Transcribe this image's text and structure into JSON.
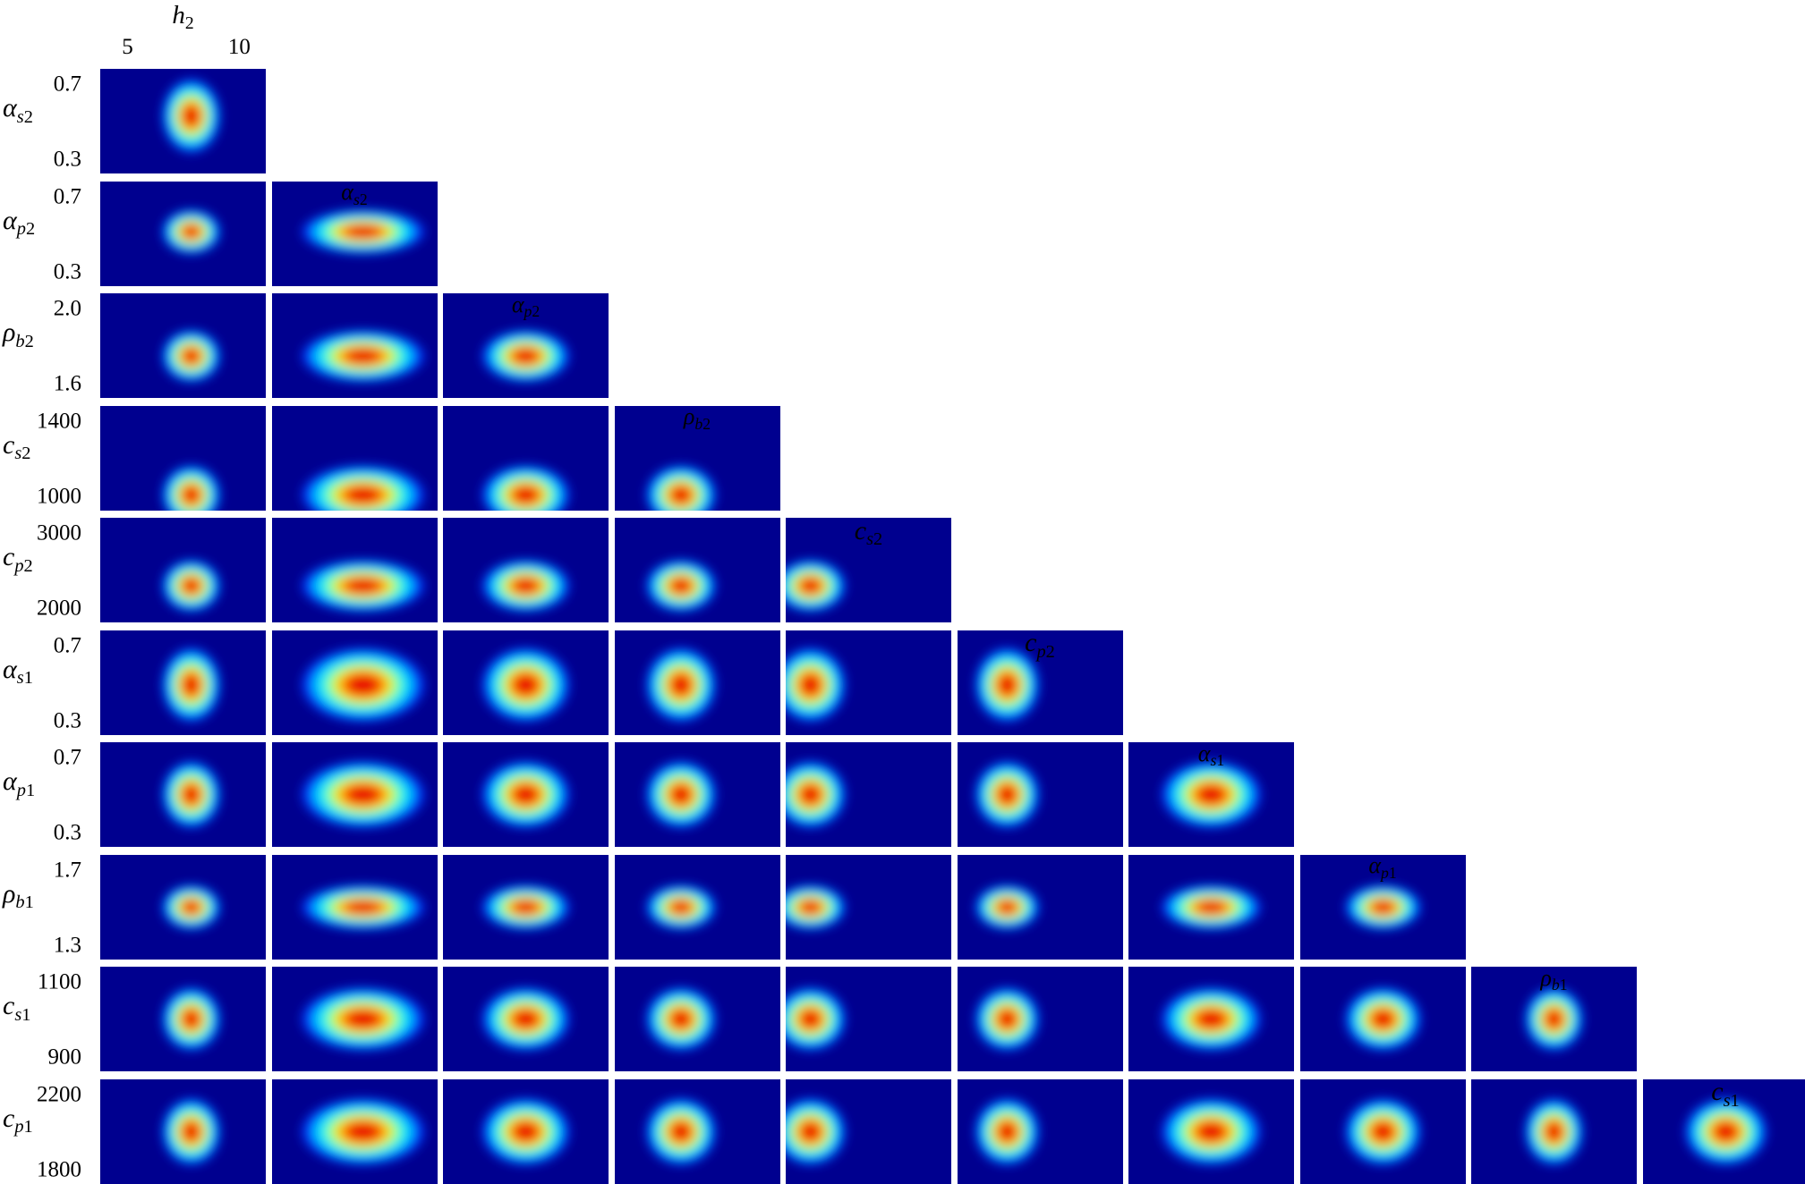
{
  "chart_data": {
    "type": "heatmap",
    "title": "",
    "layout": "lower-triangular pairwise 2D density matrix",
    "colormap": "jet",
    "colors": {
      "low": "#00008F",
      "mid": "#00FFFF",
      "peak": "#FF0000"
    },
    "grid": false,
    "top_label": {
      "base": "h",
      "sub": "2"
    },
    "top_ticks": [
      "5",
      "10"
    ],
    "variables": [
      {
        "id": "h2",
        "base": "h",
        "greek": false,
        "sub_letter": "",
        "sub_num": "2"
      },
      {
        "id": "as2",
        "base": "α",
        "greek": true,
        "sub_letter": "s",
        "sub_num": "2"
      },
      {
        "id": "ap2",
        "base": "α",
        "greek": true,
        "sub_letter": "p",
        "sub_num": "2"
      },
      {
        "id": "rb2",
        "base": "ρ",
        "greek": true,
        "sub_letter": "b",
        "sub_num": "2"
      },
      {
        "id": "cs2",
        "base": "c",
        "greek": false,
        "sub_letter": "s",
        "sub_num": "2"
      },
      {
        "id": "cp2",
        "base": "c",
        "greek": false,
        "sub_letter": "p",
        "sub_num": "2"
      },
      {
        "id": "as1",
        "base": "α",
        "greek": true,
        "sub_letter": "s",
        "sub_num": "1"
      },
      {
        "id": "ap1",
        "base": "α",
        "greek": true,
        "sub_letter": "p",
        "sub_num": "1"
      },
      {
        "id": "rb1",
        "base": "ρ",
        "greek": true,
        "sub_letter": "b",
        "sub_num": "1"
      },
      {
        "id": "cs1",
        "base": "c",
        "greek": false,
        "sub_letter": "s",
        "sub_num": "1"
      },
      {
        "id": "cp1",
        "base": "c",
        "greek": false,
        "sub_letter": "p",
        "sub_num": "1"
      }
    ],
    "rows": [
      {
        "var": "as2",
        "tick_top": "0.7",
        "tick_bottom": "0.3"
      },
      {
        "var": "ap2",
        "tick_top": "0.7",
        "tick_bottom": "0.3"
      },
      {
        "var": "rb2",
        "tick_top": "2.0",
        "tick_bottom": "1.6"
      },
      {
        "var": "cs2",
        "tick_top": "1400",
        "tick_bottom": "1000"
      },
      {
        "var": "cp2",
        "tick_top": "3000",
        "tick_bottom": "2000"
      },
      {
        "var": "as1",
        "tick_top": "0.7",
        "tick_bottom": "0.3"
      },
      {
        "var": "ap1",
        "tick_top": "0.7",
        "tick_bottom": "0.3"
      },
      {
        "var": "rb1",
        "tick_top": "1.7",
        "tick_bottom": "1.3"
      },
      {
        "var": "cs1",
        "tick_top": "1100",
        "tick_bottom": "900"
      },
      {
        "var": "cp1",
        "tick_top": "2200",
        "tick_bottom": "1800"
      }
    ],
    "column_headers": [
      "as2",
      "ap2",
      "rb2",
      "cs2",
      "cp2",
      "as1",
      "ap1",
      "rb1",
      "cs1"
    ],
    "column_peaks": [
      {
        "col": "h2",
        "cx": 0.55,
        "rx": 0.1
      },
      {
        "col": "as2",
        "cx": 0.55,
        "rx": 0.21
      },
      {
        "col": "ap2",
        "cx": 0.5,
        "rx": 0.15
      },
      {
        "col": "rb2",
        "cx": 0.4,
        "rx": 0.12
      },
      {
        "col": "cs2",
        "cx": 0.15,
        "rx": 0.12
      },
      {
        "col": "cp2",
        "cx": 0.3,
        "rx": 0.11
      },
      {
        "col": "as1",
        "cx": 0.5,
        "rx": 0.17
      },
      {
        "col": "ap1",
        "cx": 0.5,
        "rx": 0.13
      },
      {
        "col": "rb1",
        "cx": 0.5,
        "rx": 0.1
      },
      {
        "col": "cs1",
        "cx": 0.5,
        "rx": 0.14
      }
    ],
    "row_peaks": [
      {
        "row": "as2",
        "cy": 0.45,
        "ry": 0.2
      },
      {
        "row": "ap2",
        "cy": 0.48,
        "ry": 0.12
      },
      {
        "row": "rb2",
        "cy": 0.6,
        "ry": 0.14
      },
      {
        "row": "cs2",
        "cy": 0.85,
        "ry": 0.16
      },
      {
        "row": "cp2",
        "cy": 0.65,
        "ry": 0.14
      },
      {
        "row": "as1",
        "cy": 0.52,
        "ry": 0.2
      },
      {
        "row": "ap1",
        "cy": 0.5,
        "ry": 0.18
      },
      {
        "row": "rb1",
        "cy": 0.5,
        "ry": 0.12
      },
      {
        "row": "cs1",
        "cy": 0.5,
        "ry": 0.17
      },
      {
        "row": "cp1",
        "cy": 0.5,
        "ry": 0.18
      }
    ]
  }
}
